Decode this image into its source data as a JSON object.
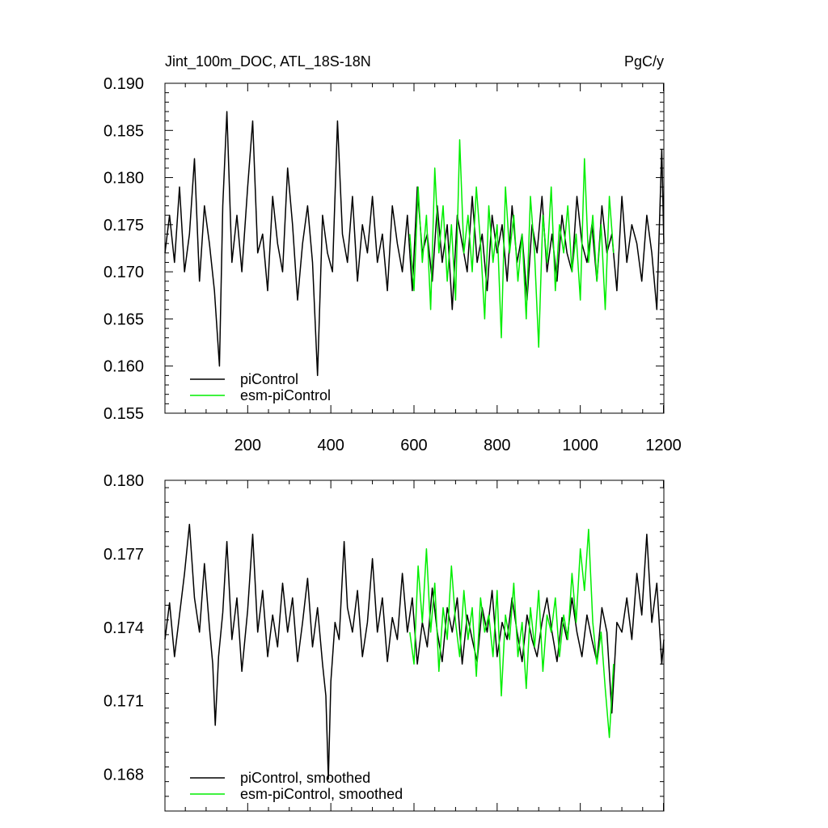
{
  "figure": {
    "title_left": "Jint_100m_DOC, ATL_18S-18N",
    "title_right": "PgC/y"
  },
  "chart_data": [
    {
      "type": "line",
      "panel": "top",
      "title": "Jint_100m_DOC, ATL_18S-18N",
      "units_label": "PgC/y",
      "xlabel": "",
      "ylabel": "",
      "xlim": [
        1,
        1201
      ],
      "ylim": [
        0.155,
        0.19
      ],
      "x_ticks": [
        200,
        400,
        600,
        800,
        1000,
        1200
      ],
      "y_ticks": [
        0.155,
        0.16,
        0.165,
        0.17,
        0.175,
        0.18,
        0.185,
        0.19
      ],
      "y_tick_labels": [
        "0.155",
        "0.160",
        "0.165",
        "0.170",
        "0.175",
        "0.180",
        "0.185",
        "0.190"
      ],
      "grid": false,
      "legend_position": "bottom-left",
      "series": [
        {
          "name": "piControl",
          "color": "#000000",
          "x": [
            1,
            12,
            24,
            36,
            48,
            60,
            72,
            84,
            96,
            108,
            120,
            132,
            140,
            150,
            162,
            174,
            186,
            200,
            212,
            224,
            236,
            248,
            260,
            272,
            284,
            296,
            308,
            320,
            332,
            344,
            356,
            368,
            380,
            392,
            404,
            416,
            428,
            440,
            452,
            464,
            476,
            488,
            500,
            512,
            524,
            536,
            548,
            560,
            572,
            584,
            596,
            608,
            620,
            632,
            644,
            656,
            668,
            680,
            692,
            704,
            716,
            728,
            740,
            752,
            764,
            776,
            788,
            800,
            812,
            824,
            836,
            848,
            860,
            872,
            884,
            896,
            908,
            920,
            932,
            944,
            956,
            968,
            980,
            992,
            1004,
            1016,
            1028,
            1040,
            1052,
            1064,
            1076,
            1088,
            1100,
            1112,
            1124,
            1136,
            1148,
            1160,
            1172,
            1184,
            1196,
            1201
          ],
          "y": [
            0.172,
            0.176,
            0.171,
            0.179,
            0.17,
            0.174,
            0.182,
            0.169,
            0.177,
            0.173,
            0.168,
            0.16,
            0.177,
            0.187,
            0.171,
            0.176,
            0.17,
            0.179,
            0.186,
            0.172,
            0.174,
            0.168,
            0.178,
            0.173,
            0.17,
            0.181,
            0.175,
            0.167,
            0.173,
            0.177,
            0.171,
            0.159,
            0.176,
            0.172,
            0.17,
            0.186,
            0.174,
            0.171,
            0.178,
            0.169,
            0.175,
            0.172,
            0.178,
            0.171,
            0.174,
            0.168,
            0.177,
            0.173,
            0.17,
            0.176,
            0.168,
            0.179,
            0.172,
            0.174,
            0.169,
            0.177,
            0.171,
            0.175,
            0.166,
            0.176,
            0.173,
            0.17,
            0.178,
            0.171,
            0.174,
            0.168,
            0.176,
            0.172,
            0.175,
            0.169,
            0.177,
            0.171,
            0.174,
            0.167,
            0.175,
            0.172,
            0.178,
            0.17,
            0.174,
            0.169,
            0.176,
            0.172,
            0.17,
            0.178,
            0.173,
            0.171,
            0.175,
            0.169,
            0.177,
            0.172,
            0.174,
            0.168,
            0.178,
            0.171,
            0.175,
            0.173,
            0.169,
            0.176,
            0.172,
            0.166,
            0.183,
            0.173
          ]
        },
        {
          "name": "esm-piControl",
          "color": "#00ee00",
          "x": [
            590,
            600,
            610,
            620,
            630,
            640,
            650,
            660,
            670,
            680,
            690,
            700,
            710,
            720,
            730,
            740,
            750,
            760,
            770,
            780,
            790,
            800,
            810,
            820,
            830,
            840,
            850,
            860,
            870,
            880,
            890,
            900,
            910,
            920,
            930,
            940,
            950,
            960,
            970,
            980,
            990,
            1000,
            1010,
            1020,
            1030,
            1040,
            1050,
            1060,
            1070,
            1080
          ],
          "y": [
            0.174,
            0.168,
            0.179,
            0.171,
            0.176,
            0.166,
            0.181,
            0.172,
            0.177,
            0.169,
            0.175,
            0.167,
            0.184,
            0.172,
            0.176,
            0.17,
            0.179,
            0.173,
            0.165,
            0.177,
            0.171,
            0.175,
            0.163,
            0.179,
            0.172,
            0.176,
            0.169,
            0.174,
            0.165,
            0.178,
            0.172,
            0.162,
            0.176,
            0.171,
            0.179,
            0.168,
            0.175,
            0.172,
            0.177,
            0.17,
            0.174,
            0.167,
            0.182,
            0.171,
            0.176,
            0.169,
            0.175,
            0.166,
            0.178,
            0.172
          ]
        }
      ]
    },
    {
      "type": "line",
      "panel": "bottom",
      "xlabel": "",
      "ylabel": "",
      "xlim": [
        1,
        1201
      ],
      "ylim": [
        0.1665,
        0.18
      ],
      "x_ticks": [
        200,
        400,
        600,
        800,
        1000,
        1200
      ],
      "y_ticks": [
        0.168,
        0.171,
        0.174,
        0.177,
        0.18
      ],
      "y_tick_labels": [
        "0.168",
        "0.171",
        "0.174",
        "0.177",
        "0.180"
      ],
      "grid": false,
      "legend_position": "bottom-left",
      "series": [
        {
          "name": "piControl, smoothed",
          "color": "#000000",
          "x": [
            1,
            12,
            24,
            36,
            48,
            60,
            72,
            84,
            96,
            108,
            116,
            122,
            130,
            140,
            150,
            162,
            174,
            186,
            200,
            212,
            224,
            236,
            248,
            260,
            272,
            284,
            296,
            308,
            320,
            332,
            344,
            356,
            368,
            380,
            388,
            394,
            400,
            410,
            420,
            432,
            440,
            452,
            464,
            476,
            488,
            500,
            512,
            524,
            536,
            548,
            560,
            572,
            584,
            596,
            608,
            620,
            632,
            644,
            656,
            668,
            680,
            692,
            704,
            716,
            728,
            740,
            752,
            764,
            776,
            788,
            800,
            812,
            824,
            836,
            848,
            860,
            872,
            884,
            896,
            908,
            920,
            932,
            944,
            956,
            968,
            980,
            992,
            1004,
            1016,
            1028,
            1040,
            1052,
            1064,
            1076,
            1088,
            1100,
            1112,
            1124,
            1136,
            1148,
            1160,
            1172,
            1184,
            1196,
            1201
          ],
          "y": [
            0.1735,
            0.175,
            0.1728,
            0.1745,
            0.1762,
            0.1782,
            0.1752,
            0.1738,
            0.1766,
            0.174,
            0.1725,
            0.17,
            0.1728,
            0.1746,
            0.1775,
            0.1735,
            0.1752,
            0.1722,
            0.1747,
            0.1778,
            0.1738,
            0.1755,
            0.1728,
            0.1745,
            0.1732,
            0.1758,
            0.1738,
            0.1752,
            0.1726,
            0.1742,
            0.176,
            0.1732,
            0.1748,
            0.1725,
            0.1712,
            0.1678,
            0.1718,
            0.1742,
            0.1735,
            0.1775,
            0.1748,
            0.1738,
            0.1755,
            0.1728,
            0.1742,
            0.1768,
            0.1738,
            0.1752,
            0.1726,
            0.1744,
            0.1735,
            0.1762,
            0.1738,
            0.1752,
            0.1725,
            0.1742,
            0.1732,
            0.1756,
            0.1738,
            0.1726,
            0.1748,
            0.1738,
            0.1752,
            0.1725,
            0.1745,
            0.1735,
            0.1726,
            0.1748,
            0.1738,
            0.1755,
            0.1728,
            0.1742,
            0.1735,
            0.1752,
            0.1738,
            0.1726,
            0.1745,
            0.1735,
            0.1728,
            0.1742,
            0.1752,
            0.1738,
            0.1726,
            0.1744,
            0.1735,
            0.1752,
            0.1738,
            0.1728,
            0.1745,
            0.1735,
            0.1726,
            0.1748,
            0.1738,
            0.1705,
            0.1742,
            0.1738,
            0.1752,
            0.1735,
            0.1762,
            0.1745,
            0.1778,
            0.1742,
            0.1758,
            0.1725,
            0.1735
          ]
        },
        {
          "name": "esm-piControl, smoothed",
          "color": "#00ee00",
          "x": [
            590,
            600,
            610,
            620,
            630,
            640,
            650,
            660,
            670,
            680,
            690,
            700,
            710,
            720,
            730,
            740,
            750,
            760,
            770,
            780,
            790,
            800,
            810,
            820,
            830,
            840,
            850,
            860,
            870,
            880,
            890,
            900,
            910,
            920,
            930,
            940,
            950,
            960,
            970,
            980,
            990,
            1000,
            1010,
            1020,
            1030,
            1040,
            1050,
            1060,
            1070,
            1080
          ],
          "y": [
            0.1738,
            0.1725,
            0.1765,
            0.1742,
            0.1772,
            0.1738,
            0.1758,
            0.1722,
            0.1748,
            0.1735,
            0.1765,
            0.1742,
            0.1728,
            0.1755,
            0.1735,
            0.1748,
            0.172,
            0.1752,
            0.1738,
            0.1745,
            0.1728,
            0.1755,
            0.1712,
            0.1745,
            0.1735,
            0.1758,
            0.1728,
            0.1742,
            0.1715,
            0.1748,
            0.1732,
            0.1755,
            0.1722,
            0.1745,
            0.1738,
            0.1752,
            0.1728,
            0.1745,
            0.1735,
            0.1762,
            0.1742,
            0.1772,
            0.1755,
            0.178,
            0.1742,
            0.1725,
            0.1738,
            0.1715,
            0.1695,
            0.1725
          ]
        }
      ]
    }
  ]
}
